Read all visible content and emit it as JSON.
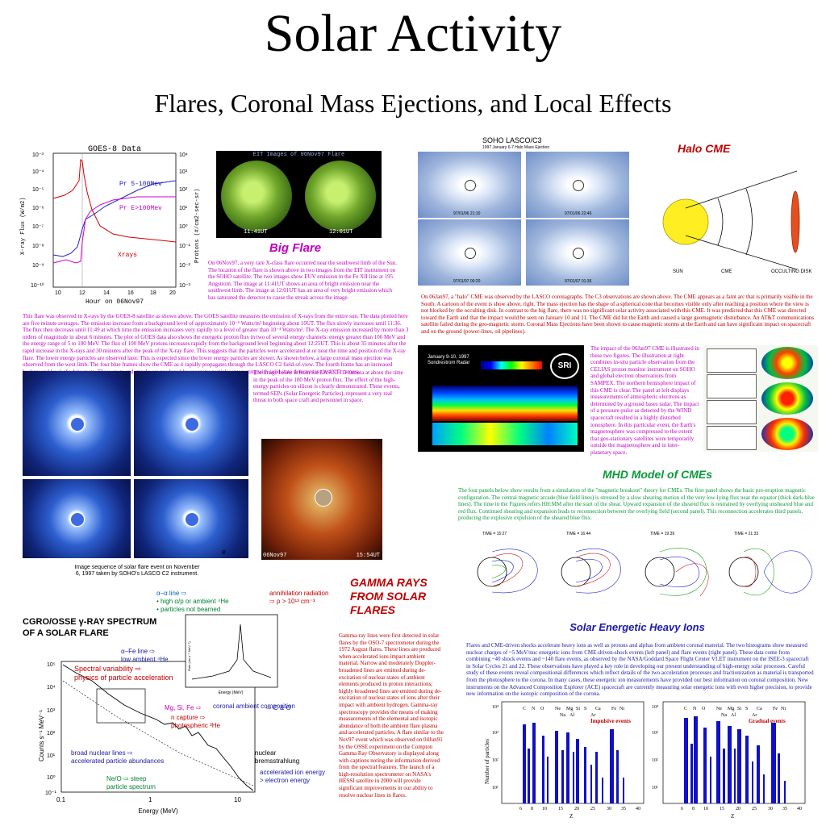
{
  "title": "Solar Activity",
  "subtitle": "Flares, Coronal Mass Ejections, and Local Effects",
  "goes": {
    "title": "GOES-8 Data",
    "xlabel": "Hour on 06Nov97",
    "ylabel_left": "X-ray Flux (W/m2)",
    "ylabel_right": "Protons (#/cm2-sec-sr)",
    "label_p5": "Pr 5-100Mev",
    "label_p100": "Pr E>100Mev",
    "label_xrays": "Xrays",
    "left_ticks": [
      "10⁻³",
      "10⁻⁴",
      "10⁻⁵",
      "10⁻⁶",
      "10⁻⁷",
      "10⁻⁸",
      "10⁻⁹",
      "10⁻¹⁰"
    ],
    "right_ticks": [
      "10⁴",
      "10³",
      "10²",
      "10¹",
      "10⁰",
      "10⁻¹",
      "10⁻²",
      "10⁻³"
    ],
    "x_ticks": [
      "10",
      "12",
      "14",
      "16",
      "18",
      "20"
    ],
    "caption": "This flare was observed in X-rays by the GOES-8 satellite as shown above. The GOES satellite measures the emission of X-rays from the entire sun. The data plotted here are five minute averages. The emission increase from a background level of approximately 10⁻⁶ Watts/m² beginning about 10UT. The flux slowly increases until 11:36. The flux then decrease until 11:49 at which time the emission increases very rapidly to a level of greater than 10⁻⁴ Watts/m². The X-ray emission increased by more than 3 orders of magnitude in about 6 minutes. The plot of GOES data also shows the energetic proton flux in two of several energy channels: energy greater than 100 MeV and the energy range of 5 to 100 MeV. The flux of 100 MeV protons increases rapidly from the background level beginning about 12:25UT. This is about 35 minutes after the rapid increase in the X-rays and 30 minutes after the peak of the X-ray flare. This suggests that the particles were accelerated at or near the time and position of the X-ray flare. The lower energy particles are observed later. This is expected since the lower energy particles are slower. As shown below, a large coronal mass ejection was observed from the west limb. The four blue frames show the CME as it rapidly propagates through the LASCO C2 field-of-view. The fourth frame has an increased background level of white spots. These spots and streaks are produced by energetic particles interacting with solid state detectors in the CCD camera."
  },
  "eit": {
    "title": "EIT Images of 06Nov97 Flare",
    "time1": "11:41UT",
    "time2": "12:01UT",
    "heading": "Big Flare",
    "caption": "On 06Nov97, a very rare X-class flare occurred near the southwest limb of the Sun. The location of the flare is shown above in two images from the EIT instrument on the SOHO satellite. The two images show EUV emission in the Fe XII line at 195 Angstrom. The image at 11:41UT shows an area of bright emission near the southwest limb. The image at 12:01UT has an area of very bright emission which has saturated the detector to cause the streak across the image."
  },
  "lasco_c2": {
    "caption": "Image sequence of solar flare event on November 6, 1997 taken by SOHO's LASCO C2 instrument.",
    "frame_label": "e"
  },
  "lasco_c3": {
    "caption": "The image below is from the LASCO C3 camera at about the time in the peak of the 100 MeV proton flux. The effect of the high-energy particles on silicon is clearly demonstrated. These events, termed SEPs (Solar Energetic Particles), represent a very real threat to both space craft and personnel in space.",
    "date": "06Nov97",
    "time": "15:54UT"
  },
  "halo": {
    "header": "SOHO LASCO/C3",
    "subheader": "1997 January 6-7 Halo Mass Ejection",
    "stamps": [
      "97/01/06 21:10",
      "97/01/06 22:46",
      "97/01/07 00:20",
      "97/01/07 01:36"
    ],
    "heading": "Halo CME",
    "diagram_sun": "SUN",
    "diagram_cme": "CME",
    "diagram_disk": "OCCULTING DISK",
    "caption": "On 06Jan97, a \"halo\" CME was observed by the LASCO coronagraphs. The C3 observations are shown above. The CME appears as a faint arc that is primarily visible in the South. A cartoon of the event is show above, right. The mass ejection has the shape of a spherical cone that becomes visible only after reaching a position where the view is not blocked by the occulting disk. In contrast to the big flare, there was no significant solar activity associated with this CME. It was predicted that this CME was directed toward the Earth and that the impact would be seen on January 10 and 11. The CME did hit the Earth and caused a large geomagnetic disturbance. An AT&T communications satellite failed during the geo-magnetic storm. Coronal Mass Ejections have been shown to cause magnetic storms at the Earth and can have significant impact on spacecraft and on the ground (power-lines, oil pipelines)."
  },
  "impact": {
    "radar_title": "January 9-10, 1997 Sondrestrom Radar",
    "radar_logo": "SRI",
    "caption": "The impact of the 06Jan97 CME is illustrated in these two figures. The illustration at right combines in-situ particle observation from the CELIAS proton monitor instrument on SOHO and global electron observations from SAMPEX. The northern hemisphere impact of this CME is clear. The panel at left displays measurements of atmospheric electrons as determined by a ground bases radar. The impact of a pressure-pulse as detected by the WIND spacecraft resulted in a highly disturbed ionosphere. In this particular event, the Earth's magnetosphere was compressed to the extent that geo-stationary satellites were temporarily outside the magnetosphere and in inter-planetary space."
  },
  "mhd": {
    "heading": "MHD Model of CMEs",
    "caption": "The four panels below show results from a simulation of the \"magnetic breakout\" theory for CMEs. The first panel shows the basic pre-eruption magnetic configuration. The central magnetic arcade (blue field lines) is stressed by a slow shearing motion of the very low-lying flux near the equator (thick dark-blue lines). The time in the Figures refers HH:MM after the start of the shear. Upward expansion of the sheared flux is restrained by overlying unsheared blue and red flux. Continued shearing and expansion leads to reconnection between the overlying field (second panel). This reconnection accelerates third panels, producing the explosive expulsion of the sheared blue flux.",
    "times": [
      "TIME = 15:27",
      "TIME = 16:44",
      "TIME = 19:39",
      "TIME = 21:33"
    ]
  },
  "gamma": {
    "heading": "GAMMA RAYS FROM SOLAR FLARES",
    "spectrum_title_1": "CGRO/OSSE γ-RAY SPECTRUM",
    "spectrum_title_2": "OF A SOLAR FLARE",
    "ann_alpha_1": "α–α line ⇨",
    "ann_alpha_2": "• high α/p or ambient ⁴He",
    "ann_alpha_3": "• particles not beamed",
    "ann_annih_1": "annihilation radiation",
    "ann_annih_2": "⇨ ρ > 10¹³ cm⁻³",
    "ann_fe_1": "α–Fe line ⇨",
    "ann_fe_2": "low ambient ⁴He",
    "ann_spec_1": "Spectral variability ⇨",
    "ann_spec_2": "physics of particle acceleration",
    "ann_mg_1": "Mg, Si, Fe ⇨",
    "ann_mg_2": "coronal ambient composition",
    "ann_mg_3": "⇨ C & O",
    "ann_n_1": "n capture ⇨",
    "ann_n_2": "photospheric ³He",
    "ann_broad_1": "broad nuclear lines ⇨",
    "ann_broad_2": "accelerated particle abundances",
    "ann_neo_1": "Ne/O ⇨ steep",
    "ann_neo_2": "particle spectrum",
    "ann_brem_1": "nuclear",
    "ann_brem_2": "bremsstrahlung",
    "ann_brem_3": "accelerated ion energy",
    "ann_brem_4": "> electron energy",
    "xlabel": "Energy (MeV)",
    "ylabel": "Counts s⁻¹ MeV⁻¹",
    "inset_xlabel": "Energy (MeV)",
    "inset_ylabel": "Rate (cts s⁻¹ MeV⁻¹)",
    "x_ticks": [
      "0.1",
      "1",
      "10"
    ],
    "y_ticks": [
      "10⁵",
      "10⁴",
      "10³",
      "10²",
      "10¹",
      "10⁰",
      "10⁻¹"
    ],
    "caption": "Gamma-ray lines were first detected in solar flares by the OSO-7 spectrometer during the 1972 August flares. These lines are produced when accelerated ions impact ambient material. Narrow and moderately Doppler-broadened lines are emitted during de-excitation of nuclear states of ambient elements produced in proton interactions; highly broadened lines are emitted during de-excitation of nuclear states of ions after their impact with ambient hydrogen. Gamma-ray spectroscopy provides the means of making measurements of the elemental and isotopic abundance of both the ambient flare plasma and accelerated particles. A flare similar to the Nov97 event which was observed on 04Jun91 by the OSSE experiment on the Compton Gamma Ray Observatory is displayed along with captions noting the information derived from the spectral features. The launch of a high-resolution spectrometer on NASA's HESSI satellite in 2000 will provide significant improvements in our ability to resolve nuclear lines in flares."
  },
  "seh": {
    "heading": "Solar Energetic Heavy Ions",
    "caption": "Flares and CME-driven shocks accelerate heavy ions as well as protons and alphas from ambient coronal material. The two histograms show measured nuclear charges of ~5 MeV/nuc energetic ions from CME-driven-shock events (left panel) and flare events (right panel). These data come from combining ~40 shock events and ~140 flare events, as observed by the NASA/Goddard Space Flight Center VLET instrument on the ISEE-3 spacecraft in Solar Cycles 21 and 22. These observations have played a key role in developing our present understanding of high-energy solar processes. Careful study of these events reveal compositional differences which reflect details of the two acceleration processes and fractionization as material is transported from the photosphere to the corona. In many cases, these energetic ion measurements have provided our best information on coronal composition. New instruments on the Advanced Composition Explorer (ACE) spacecraft are currently measuring solar energetic ions with even higher precision, to provide new information on the isotopic composition of the corona.",
    "left_label": "Impulsive events",
    "right_label": "Gradual events",
    "ylabel": "Number of particles",
    "xlabel": "Z",
    "elements_top": [
      "C",
      "N",
      "O",
      "Ne",
      "Mg",
      "Si",
      "S",
      "Ca",
      "Fe",
      "Ni"
    ],
    "elements_bottom": [
      "Na",
      "Al",
      "Ar"
    ],
    "x_ticks": [
      "6",
      "8",
      "10",
      "15",
      "20",
      "25",
      "30",
      "35",
      "40"
    ],
    "y_ticks": [
      "10⁴",
      "10³",
      "10²",
      "10¹"
    ]
  },
  "colors": {
    "magenta": "#c000c0",
    "red": "#c00000",
    "blue_heading": "#1a1aa8",
    "green_heading": "#0a9a3a",
    "hist_blue": "#1010c8"
  }
}
